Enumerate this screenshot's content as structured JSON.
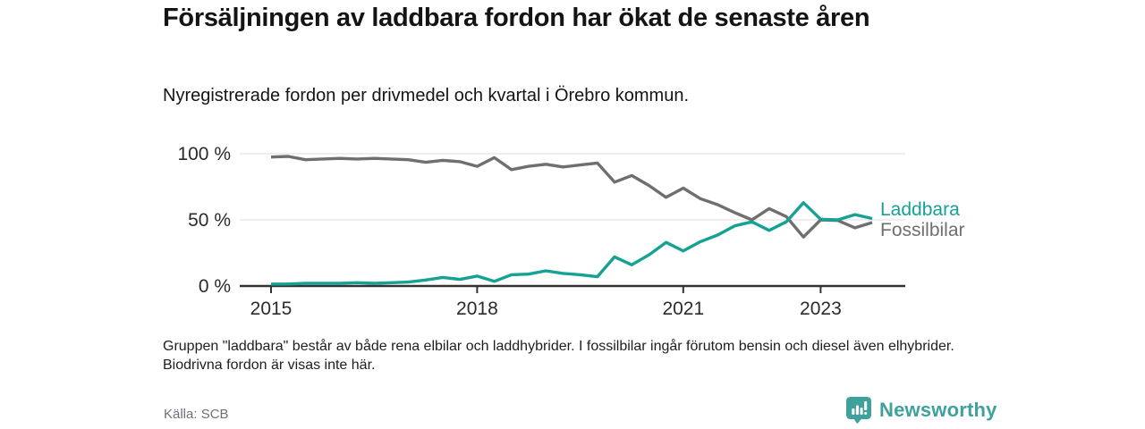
{
  "header": {
    "title": "Försäljningen av laddbara fordon har ökat de senaste åren",
    "subtitle": "Nyregistrerade fordon per drivmedel och kvartal i Örebro kommun."
  },
  "chart_data": {
    "type": "line",
    "title": "Nyregistrerade fordon per drivmedel och kvartal i Örebro kommun",
    "x_unit": "kvartal",
    "categories": [
      "2015K1",
      "2015K2",
      "2015K3",
      "2015K4",
      "2016K1",
      "2016K2",
      "2016K3",
      "2016K4",
      "2017K1",
      "2017K2",
      "2017K3",
      "2017K4",
      "2018K1",
      "2018K2",
      "2018K3",
      "2018K4",
      "2019K1",
      "2019K2",
      "2019K3",
      "2019K4",
      "2020K1",
      "2020K2",
      "2020K3",
      "2020K4",
      "2021K1",
      "2021K2",
      "2021K3",
      "2021K4",
      "2022K1",
      "2022K2",
      "2022K3",
      "2022K4",
      "2023K1",
      "2023K2",
      "2023K3",
      "2023K4"
    ],
    "series": [
      {
        "name": "Fossilbilar",
        "color": "#6f6f6f",
        "values": [
          97.5,
          98,
          95.5,
          96,
          96.5,
          96,
          96.5,
          96,
          95.5,
          93.5,
          95,
          94,
          90.5,
          97,
          88,
          90.5,
          92,
          90,
          91.5,
          93,
          78.5,
          83.5,
          76,
          67,
          74,
          66,
          61.5,
          55.5,
          50,
          58.5,
          52.5,
          37,
          50,
          49.5,
          44,
          48
        ]
      },
      {
        "name": "Laddbara",
        "color": "#16a195",
        "values": [
          1.5,
          1.5,
          2,
          2,
          2,
          2.5,
          2,
          2.5,
          3,
          4.5,
          6.5,
          5,
          7.5,
          3.5,
          8.5,
          9,
          11.5,
          9.5,
          8.5,
          7,
          22,
          16,
          23.5,
          33,
          26.5,
          33.5,
          38.5,
          45.5,
          48.5,
          42,
          48.5,
          63,
          50.5,
          50,
          54,
          51
        ]
      }
    ],
    "ylim": [
      0,
      100
    ],
    "yticks": [
      {
        "value": 0,
        "label": "0 %"
      },
      {
        "value": 50,
        "label": "50 %"
      },
      {
        "value": 100,
        "label": "100 %"
      }
    ],
    "xticks": [
      {
        "index": 0,
        "label": "2015"
      },
      {
        "index": 12,
        "label": "2018"
      },
      {
        "index": 24,
        "label": "2021"
      },
      {
        "index": 32,
        "label": "2023"
      }
    ],
    "grid": "horizontal",
    "legend_position": "end-of-line",
    "end_labels": [
      {
        "text": "Laddbara",
        "color": "#16a195"
      },
      {
        "text": "Fossilbilar",
        "color": "#6f6f6f"
      }
    ]
  },
  "footer": {
    "note": "Gruppen \"laddbara\" består av både rena elbilar och laddhybrider. I fossilbilar ingår förutom bensin och diesel även elhybrider. Biodrivna fordon är visas inte här.",
    "source": "Källa: SCB",
    "brand": "Newsworthy",
    "brand_color": "#3fa19b"
  }
}
